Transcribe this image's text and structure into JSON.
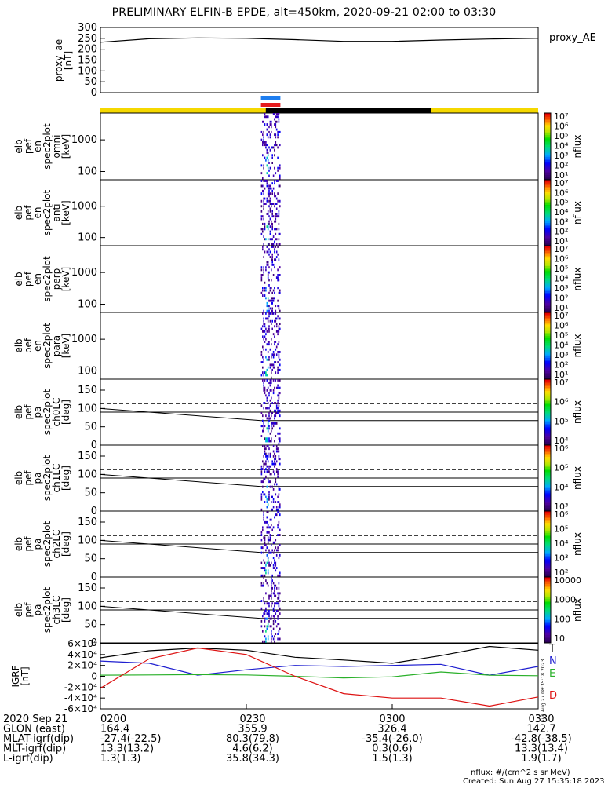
{
  "title": "PRELIMINARY ELFIN-B EPDE, alt=450km, 2020-09-21 02:00 to 03:30",
  "footer": {
    "line1": "nflux: #/(cm^2 s sr MeV)",
    "line2": "Created: Sun Aug 27 15:35:18 2023",
    "side_stamp": "Sun Aug 27 08:35:18 2023"
  },
  "ephem": {
    "rows": [
      {
        "label": "2020 Sep 21",
        "values": [
          "0200",
          "0230",
          "0300",
          "0330"
        ]
      },
      {
        "label": "GLON (east)",
        "values": [
          "164.4",
          "355.9",
          "326.4",
          "142.7"
        ]
      },
      {
        "label": "MLAT-igrf(dip)",
        "values": [
          "-27.4(-22.5)",
          "80.3(79.8)",
          "-35.4(-26.0)",
          "-42.8(-38.5)"
        ]
      },
      {
        "label": "MLT-igrf(dip)",
        "values": [
          "13.3(13.2)",
          "4.6(6.2)",
          "0.3(0.6)",
          "13.3(13.4)"
        ]
      },
      {
        "label": "L-igrf(dip)",
        "values": [
          "1.3(1.3)",
          "35.8(34.3)",
          "1.5(1.3)",
          "1.9(1.7)"
        ]
      }
    ]
  },
  "chart_data": [
    {
      "id": "proxy_ae",
      "type": "line",
      "ylabel": [
        "proxy_ae",
        "[nT]"
      ],
      "legend": "proxy_AE",
      "ylim": [
        0,
        300
      ],
      "yticks": [
        "0",
        "50",
        "100",
        "150",
        "200",
        "250",
        "300"
      ],
      "x": [
        "02:00",
        "02:10",
        "02:20",
        "02:30",
        "02:40",
        "02:50",
        "03:00",
        "03:10",
        "03:20",
        "03:30"
      ],
      "values": [
        232,
        248,
        252,
        250,
        244,
        236,
        236,
        242,
        247,
        250
      ]
    },
    {
      "id": "status_bars",
      "type": "bar",
      "bars": [
        {
          "name": "science collection A",
          "color": "#1e7ef0",
          "x_start": "02:33",
          "x_end": "02:37"
        },
        {
          "name": "science collection B",
          "color": "#e41a1c",
          "x_start": "02:33",
          "x_end": "02:37"
        },
        {
          "name": "orbit coverage",
          "color": "#f5d800",
          "x_start": "02:00",
          "x_end": "03:30"
        },
        {
          "name": "shadow",
          "color": "#000000",
          "x_start": "02:34",
          "x_end": "03:08"
        }
      ]
    },
    {
      "id": "spec_omni",
      "type": "heatmap",
      "ylabel": [
        "elb",
        "pef",
        "en",
        "spec2plot",
        "omni",
        "[keV]"
      ],
      "yticks": [
        "100",
        "1000"
      ],
      "y_scale": "log",
      "colorbar": {
        "label": "nflux",
        "ticks": [
          "10¹",
          "10²",
          "10³",
          "10⁴",
          "10⁵",
          "10⁶",
          "10⁷"
        ]
      }
    },
    {
      "id": "spec_anti",
      "type": "heatmap",
      "ylabel": [
        "elb",
        "pef",
        "en",
        "spec2plot",
        "anti",
        "[keV]"
      ],
      "yticks": [
        "100",
        "1000"
      ],
      "y_scale": "log",
      "colorbar": {
        "label": "nflux",
        "ticks": [
          "10¹",
          "10²",
          "10³",
          "10⁴",
          "10⁵",
          "10⁶",
          "10⁷"
        ]
      }
    },
    {
      "id": "spec_perp",
      "type": "heatmap",
      "ylabel": [
        "elb",
        "pef",
        "en",
        "spec2plot",
        "perp",
        "[keV]"
      ],
      "yticks": [
        "100",
        "1000"
      ],
      "y_scale": "log",
      "colorbar": {
        "label": "nflux",
        "ticks": [
          "10¹",
          "10²",
          "10³",
          "10⁴",
          "10⁵",
          "10⁶",
          "10⁷"
        ]
      }
    },
    {
      "id": "spec_para",
      "type": "heatmap",
      "ylabel": [
        "elb",
        "pef",
        "en",
        "spec2plot",
        "para",
        "[keV]"
      ],
      "yticks": [
        "100",
        "1000"
      ],
      "y_scale": "log",
      "colorbar": {
        "label": "nflux",
        "ticks": [
          "10¹",
          "10²",
          "10³",
          "10⁴",
          "10⁵",
          "10⁶",
          "10⁷"
        ]
      }
    },
    {
      "id": "pa_ch0",
      "type": "heatmap",
      "ylabel": [
        "elb",
        "pef",
        "pa",
        "spec2plot",
        "ch0LC",
        "[deg]"
      ],
      "ylim": [
        0,
        180
      ],
      "yticks": [
        "0",
        "50",
        "100",
        "150"
      ],
      "colorbar": {
        "label": "nflux",
        "ticks": [
          "10⁴",
          "10⁵",
          "10⁶",
          "10⁷"
        ]
      }
    },
    {
      "id": "pa_ch1",
      "type": "heatmap",
      "ylabel": [
        "elb",
        "pef",
        "pa",
        "spec2plot",
        "ch1LC",
        "[deg]"
      ],
      "ylim": [
        0,
        180
      ],
      "yticks": [
        "0",
        "50",
        "100",
        "150"
      ],
      "colorbar": {
        "label": "nflux",
        "ticks": [
          "10³",
          "10⁴",
          "10⁵",
          "10⁶"
        ]
      }
    },
    {
      "id": "pa_ch2",
      "type": "heatmap",
      "ylabel": [
        "elb",
        "pef",
        "pa",
        "spec2plot",
        "ch2LC",
        "[deg]"
      ],
      "ylim": [
        0,
        180
      ],
      "yticks": [
        "0",
        "50",
        "100",
        "150"
      ],
      "colorbar": {
        "label": "nflux",
        "ticks": [
          "10²",
          "10³",
          "10⁴",
          "10⁵",
          "10⁶"
        ]
      }
    },
    {
      "id": "pa_ch3",
      "type": "heatmap",
      "ylabel": [
        "elb",
        "pef",
        "pa",
        "spec2plot",
        "ch3LC",
        "[deg]"
      ],
      "ylim": [
        0,
        180
      ],
      "yticks": [
        "0",
        "50",
        "100",
        "150"
      ],
      "colorbar": {
        "label": "nflux",
        "ticks": [
          "10",
          "100",
          "1000",
          "10000"
        ]
      }
    },
    {
      "id": "igrf",
      "type": "line",
      "ylabel": [
        "IGRF",
        "[nT]"
      ],
      "ylim": [
        -60000,
        60000
      ],
      "yticks": [
        "-6×10⁴",
        "-4×10⁴",
        "-2×10⁴",
        "0",
        "2×10⁴",
        "4×10⁴",
        "6×10⁴"
      ],
      "x": [
        "02:00",
        "02:10",
        "02:20",
        "02:30",
        "02:40",
        "02:50",
        "03:00",
        "03:10",
        "03:20",
        "03:30"
      ],
      "series": [
        {
          "name": "T",
          "color": "#000000",
          "values": [
            34000,
            47000,
            52000,
            48000,
            35000,
            30000,
            24000,
            38000,
            55000,
            48000
          ]
        },
        {
          "name": "N",
          "color": "#1f1fd0",
          "values": [
            28000,
            24000,
            2000,
            12000,
            20000,
            18000,
            20000,
            22000,
            2000,
            18000
          ]
        },
        {
          "name": "E",
          "color": "#2ab02a",
          "values": [
            2000,
            2500,
            3000,
            2500,
            0,
            -3000,
            -1000,
            8000,
            2000,
            1000
          ]
        },
        {
          "name": "D",
          "color": "#dd1111",
          "values": [
            -22000,
            32000,
            52000,
            40000,
            0,
            -32000,
            -40000,
            -40000,
            -55000,
            -38000
          ]
        }
      ]
    }
  ]
}
